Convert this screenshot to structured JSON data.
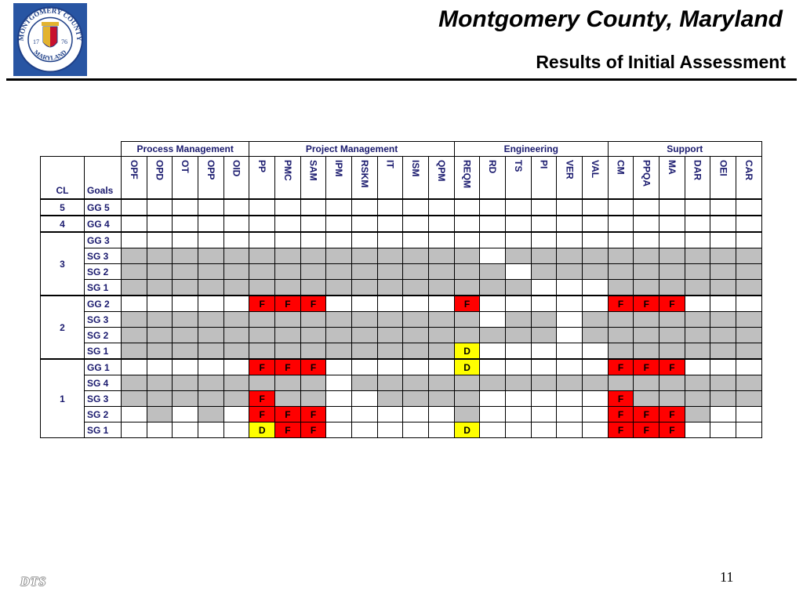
{
  "header": {
    "title": "Montgomery County, Maryland",
    "subtitle": "Results of Initial Assessment"
  },
  "seal": {
    "text_top": "MONTGOMERY COUNTY",
    "text_bottom": "MARYLAND",
    "year_left": "17",
    "year_right": "76",
    "colors": {
      "background": "#2855a3",
      "ring": "#ffffff",
      "shield": "#c8102e",
      "gold": "#e3b32e"
    }
  },
  "footer": {
    "page_number": "11",
    "logo_text": "DTS"
  },
  "colors": {
    "fail": "#ff0000",
    "deferred": "#ffff00",
    "not_applicable": "#bfbfbf",
    "applicable": "#ffffff",
    "text": "#1a1a6e"
  },
  "table": {
    "cl_header": "CL",
    "goals_header": "Goals",
    "groups": [
      {
        "label": "Process Management",
        "span": 5
      },
      {
        "label": "Project Management",
        "span": 8
      },
      {
        "label": "Engineering",
        "span": 6
      },
      {
        "label": "Support",
        "span": 6
      }
    ],
    "process_areas": [
      "OPF",
      "OPD",
      "OT",
      "OPP",
      "OID",
      "PP",
      "PMC",
      "SAM",
      "IPM",
      "RSKM",
      "IT",
      "ISM",
      "QPM",
      "REQM",
      "RD",
      "TS",
      "PI",
      "VER",
      "VAL",
      "CM",
      "PPQA",
      "MA",
      "DAR",
      "OEI",
      "CAR"
    ],
    "levels": [
      {
        "cl": "5",
        "rows": [
          {
            "goal": "GG 5",
            "cells": [
              "w",
              "w",
              "w",
              "w",
              "w",
              "w",
              "w",
              "w",
              "w",
              "w",
              "w",
              "w",
              "w",
              "w",
              "w",
              "w",
              "w",
              "w",
              "w",
              "w",
              "w",
              "w",
              "w",
              "w",
              "w"
            ]
          }
        ]
      },
      {
        "cl": "4",
        "rows": [
          {
            "goal": "GG 4",
            "cells": [
              "w",
              "w",
              "w",
              "w",
              "w",
              "w",
              "w",
              "w",
              "w",
              "w",
              "w",
              "w",
              "w",
              "w",
              "w",
              "w",
              "w",
              "w",
              "w",
              "w",
              "w",
              "w",
              "w",
              "w",
              "w"
            ]
          }
        ]
      },
      {
        "cl": "3",
        "rows": [
          {
            "goal": "GG 3",
            "cells": [
              "w",
              "w",
              "w",
              "w",
              "w",
              "w",
              "w",
              "w",
              "w",
              "w",
              "w",
              "w",
              "w",
              "w",
              "w",
              "w",
              "w",
              "w",
              "w",
              "w",
              "w",
              "w",
              "w",
              "w",
              "w"
            ]
          },
          {
            "goal": "SG 3",
            "cells": [
              "g",
              "g",
              "g",
              "g",
              "g",
              "g",
              "g",
              "g",
              "g",
              "g",
              "g",
              "g",
              "g",
              "g",
              "w",
              "g",
              "g",
              "g",
              "g",
              "g",
              "g",
              "g",
              "g",
              "g",
              "g"
            ]
          },
          {
            "goal": "SG 2",
            "cells": [
              "g",
              "g",
              "g",
              "g",
              "g",
              "g",
              "g",
              "g",
              "g",
              "g",
              "g",
              "g",
              "g",
              "g",
              "g",
              "w",
              "g",
              "g",
              "g",
              "g",
              "g",
              "g",
              "g",
              "g",
              "g"
            ]
          },
          {
            "goal": "SG 1",
            "cells": [
              "g",
              "g",
              "g",
              "g",
              "g",
              "g",
              "g",
              "g",
              "g",
              "g",
              "g",
              "g",
              "g",
              "g",
              "g",
              "g",
              "w",
              "w",
              "w",
              "g",
              "g",
              "g",
              "g",
              "g",
              "g"
            ]
          }
        ]
      },
      {
        "cl": "2",
        "rows": [
          {
            "goal": "GG 2",
            "cells": [
              "w",
              "w",
              "w",
              "w",
              "w",
              "F",
              "F",
              "F",
              "w",
              "w",
              "w",
              "w",
              "w",
              "F",
              "w",
              "w",
              "w",
              "w",
              "w",
              "F",
              "F",
              "F",
              "w",
              "w",
              "w"
            ]
          },
          {
            "goal": "SG 3",
            "cells": [
              "g",
              "g",
              "g",
              "g",
              "g",
              "g",
              "g",
              "g",
              "g",
              "g",
              "g",
              "g",
              "g",
              "g",
              "w",
              "g",
              "g",
              "w",
              "g",
              "g",
              "g",
              "g",
              "g",
              "g",
              "g"
            ]
          },
          {
            "goal": "SG 2",
            "cells": [
              "g",
              "g",
              "g",
              "g",
              "g",
              "g",
              "g",
              "g",
              "g",
              "g",
              "g",
              "g",
              "g",
              "g",
              "g",
              "g",
              "g",
              "w",
              "g",
              "g",
              "g",
              "g",
              "g",
              "g",
              "g"
            ]
          },
          {
            "goal": "SG 1",
            "cells": [
              "g",
              "g",
              "g",
              "g",
              "g",
              "g",
              "g",
              "g",
              "g",
              "g",
              "g",
              "g",
              "g",
              "D",
              "w",
              "w",
              "w",
              "w",
              "w",
              "g",
              "g",
              "g",
              "g",
              "g",
              "g"
            ]
          }
        ]
      },
      {
        "cl": "1",
        "rows": [
          {
            "goal": "GG 1",
            "cells": [
              "w",
              "w",
              "w",
              "w",
              "w",
              "F",
              "F",
              "F",
              "w",
              "w",
              "w",
              "w",
              "w",
              "D",
              "w",
              "w",
              "w",
              "w",
              "w",
              "F",
              "F",
              "F",
              "w",
              "w",
              "w"
            ]
          },
          {
            "goal": "SG 4",
            "cells": [
              "g",
              "g",
              "g",
              "g",
              "g",
              "g",
              "g",
              "g",
              "w",
              "g",
              "g",
              "g",
              "g",
              "g",
              "g",
              "g",
              "g",
              "g",
              "g",
              "g",
              "g",
              "g",
              "g",
              "g",
              "g"
            ]
          },
          {
            "goal": "SG 3",
            "cells": [
              "g",
              "g",
              "g",
              "g",
              "g",
              "F",
              "g",
              "g",
              "w",
              "w",
              "g",
              "g",
              "g",
              "g",
              "w",
              "w",
              "w",
              "w",
              "w",
              "F",
              "g",
              "g",
              "g",
              "g",
              "g"
            ]
          },
          {
            "goal": "SG 2",
            "cells": [
              "w",
              "g",
              "w",
              "g",
              "w",
              "F",
              "F",
              "F",
              "w",
              "w",
              "w",
              "w",
              "w",
              "g",
              "w",
              "w",
              "w",
              "w",
              "w",
              "F",
              "F",
              "F",
              "g",
              "w",
              "w"
            ]
          },
          {
            "goal": "SG 1",
            "cells": [
              "w",
              "w",
              "w",
              "w",
              "w",
              "D",
              "F",
              "F",
              "w",
              "w",
              "w",
              "w",
              "w",
              "D",
              "w",
              "w",
              "w",
              "w",
              "w",
              "F",
              "F",
              "F",
              "w",
              "w",
              "w"
            ]
          }
        ]
      }
    ]
  }
}
